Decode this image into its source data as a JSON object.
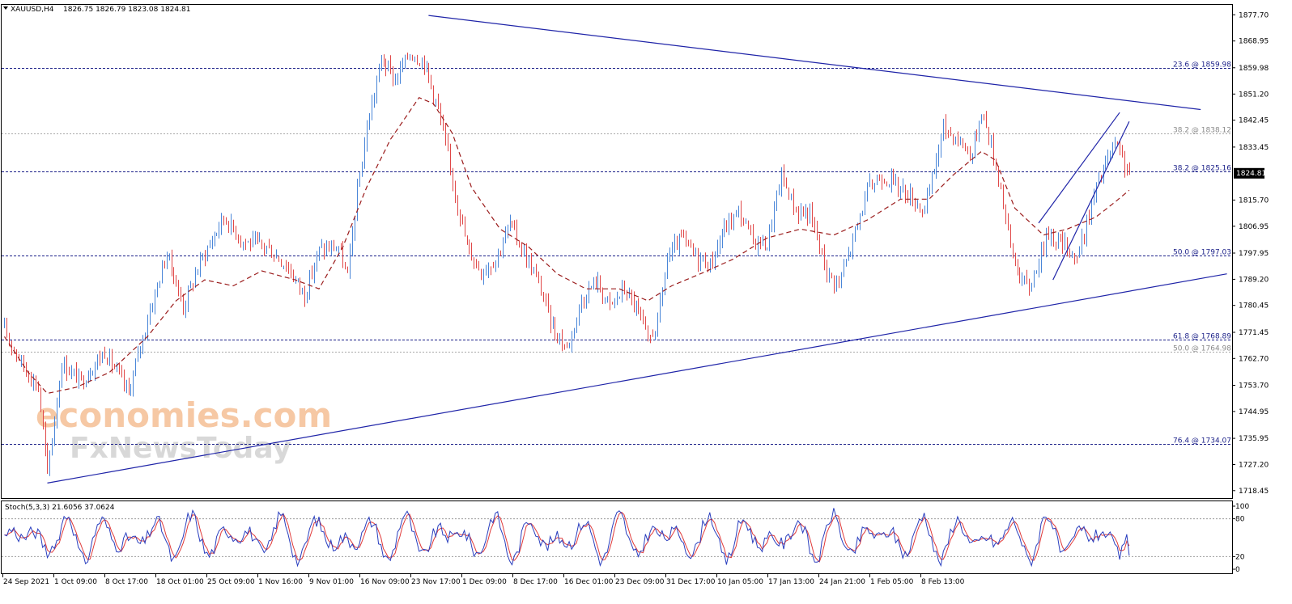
{
  "header": {
    "symbol_text": "XAUUSD,H4",
    "ohlc_text": "1826.75 1826.79 1823.08 1824.81"
  },
  "watermark": {
    "line1": "economies.com",
    "line2": "FxNewsToday"
  },
  "colors": {
    "bull": "#4a86d8",
    "bear": "#e04848",
    "ma": "#9b1c1c",
    "trend": "#1f24a8",
    "fib_major": "#1a1f88",
    "fib_minor": "#a8a8a8",
    "stoch_main": "#2a3fbf",
    "stoch_signal": "#e03a3a",
    "watermark_orange": "#f6c8a4",
    "watermark_grey": "#d8d8d8"
  },
  "chart_data": {
    "type": "candlestick",
    "symbol": "XAUUSD",
    "timeframe": "H4",
    "last_price": "1824.81",
    "price_ticks": [
      "1877.70",
      "1868.95",
      "1859.98",
      "1851.20",
      "1842.45",
      "1833.45",
      "1815.70",
      "1806.95",
      "1797.95",
      "1789.20",
      "1780.45",
      "1771.45",
      "1762.70",
      "1753.70",
      "1744.95",
      "1735.95",
      "1727.20",
      "1718.45"
    ],
    "y_range": [
      1716.5,
      1880.5
    ],
    "x_labels": [
      "24 Sep 2021",
      "1 Oct 09:00",
      "8 Oct 17:00",
      "18 Oct 01:00",
      "25 Oct 09:00",
      "1 Nov 16:00",
      "9 Nov 01:00",
      "16 Nov 09:00",
      "23 Nov 17:00",
      "1 Dec 09:00",
      "8 Dec 17:00",
      "16 Dec 01:00",
      "23 Dec 09:00",
      "31 Dec 17:00",
      "10 Jan 05:00",
      "17 Jan 13:00",
      "24 Jan 21:00",
      "1 Feb 05:00",
      "8 Feb 13:00"
    ],
    "anchors": [
      {
        "bar": 0,
        "price": 1772
      },
      {
        "bar": 8,
        "price": 1760
      },
      {
        "bar": 14,
        "price": 1753
      },
      {
        "bar": 18,
        "price": 1724
      },
      {
        "bar": 24,
        "price": 1761
      },
      {
        "bar": 32,
        "price": 1755
      },
      {
        "bar": 42,
        "price": 1765
      },
      {
        "bar": 52,
        "price": 1751
      },
      {
        "bar": 60,
        "price": 1776
      },
      {
        "bar": 68,
        "price": 1798
      },
      {
        "bar": 75,
        "price": 1780
      },
      {
        "bar": 82,
        "price": 1795
      },
      {
        "bar": 92,
        "price": 1810
      },
      {
        "bar": 100,
        "price": 1802
      },
      {
        "bar": 110,
        "price": 1800
      },
      {
        "bar": 118,
        "price": 1794
      },
      {
        "bar": 126,
        "price": 1784
      },
      {
        "bar": 132,
        "price": 1799
      },
      {
        "bar": 140,
        "price": 1800
      },
      {
        "bar": 144,
        "price": 1790
      },
      {
        "bar": 148,
        "price": 1818
      },
      {
        "bar": 152,
        "price": 1840
      },
      {
        "bar": 158,
        "price": 1863
      },
      {
        "bar": 164,
        "price": 1856
      },
      {
        "bar": 170,
        "price": 1865
      },
      {
        "bar": 176,
        "price": 1862
      },
      {
        "bar": 182,
        "price": 1846
      },
      {
        "bar": 188,
        "price": 1822
      },
      {
        "bar": 194,
        "price": 1800
      },
      {
        "bar": 200,
        "price": 1792
      },
      {
        "bar": 206,
        "price": 1796
      },
      {
        "bar": 212,
        "price": 1808
      },
      {
        "bar": 218,
        "price": 1798
      },
      {
        "bar": 224,
        "price": 1788
      },
      {
        "bar": 230,
        "price": 1773
      },
      {
        "bar": 236,
        "price": 1766
      },
      {
        "bar": 242,
        "price": 1782
      },
      {
        "bar": 248,
        "price": 1789
      },
      {
        "bar": 254,
        "price": 1780
      },
      {
        "bar": 260,
        "price": 1786
      },
      {
        "bar": 266,
        "price": 1778
      },
      {
        "bar": 270,
        "price": 1768
      },
      {
        "bar": 274,
        "price": 1775
      },
      {
        "bar": 278,
        "price": 1796
      },
      {
        "bar": 284,
        "price": 1803
      },
      {
        "bar": 290,
        "price": 1797
      },
      {
        "bar": 296,
        "price": 1794
      },
      {
        "bar": 302,
        "price": 1806
      },
      {
        "bar": 308,
        "price": 1812
      },
      {
        "bar": 314,
        "price": 1802
      },
      {
        "bar": 320,
        "price": 1801
      },
      {
        "bar": 326,
        "price": 1824
      },
      {
        "bar": 332,
        "price": 1812
      },
      {
        "bar": 338,
        "price": 1811
      },
      {
        "bar": 342,
        "price": 1800
      },
      {
        "bar": 346,
        "price": 1790
      },
      {
        "bar": 350,
        "price": 1788
      },
      {
        "bar": 356,
        "price": 1802
      },
      {
        "bar": 362,
        "price": 1819
      },
      {
        "bar": 368,
        "price": 1824
      },
      {
        "bar": 374,
        "price": 1821
      },
      {
        "bar": 380,
        "price": 1817
      },
      {
        "bar": 386,
        "price": 1812
      },
      {
        "bar": 390,
        "price": 1826
      },
      {
        "bar": 394,
        "price": 1840
      },
      {
        "bar": 400,
        "price": 1836
      },
      {
        "bar": 406,
        "price": 1831
      },
      {
        "bar": 410,
        "price": 1846
      },
      {
        "bar": 414,
        "price": 1834
      },
      {
        "bar": 418,
        "price": 1820
      },
      {
        "bar": 422,
        "price": 1800
      },
      {
        "bar": 426,
        "price": 1790
      },
      {
        "bar": 430,
        "price": 1786
      },
      {
        "bar": 434,
        "price": 1796
      },
      {
        "bar": 438,
        "price": 1805
      },
      {
        "bar": 442,
        "price": 1802
      },
      {
        "bar": 446,
        "price": 1800
      },
      {
        "bar": 450,
        "price": 1796
      },
      {
        "bar": 454,
        "price": 1808
      },
      {
        "bar": 458,
        "price": 1820
      },
      {
        "bar": 462,
        "price": 1828
      },
      {
        "bar": 466,
        "price": 1834
      },
      {
        "bar": 469,
        "price": 1829
      },
      {
        "bar": 472,
        "price": 1824.81
      }
    ],
    "moving_average": {
      "style": "dashed",
      "anchors": [
        {
          "bar": 0,
          "price": 1770
        },
        {
          "bar": 10,
          "price": 1758
        },
        {
          "bar": 18,
          "price": 1751
        },
        {
          "bar": 30,
          "price": 1753
        },
        {
          "bar": 44,
          "price": 1758
        },
        {
          "bar": 60,
          "price": 1770
        },
        {
          "bar": 72,
          "price": 1782
        },
        {
          "bar": 84,
          "price": 1789
        },
        {
          "bar": 96,
          "price": 1787
        },
        {
          "bar": 108,
          "price": 1792
        },
        {
          "bar": 122,
          "price": 1789
        },
        {
          "bar": 132,
          "price": 1786
        },
        {
          "bar": 142,
          "price": 1800
        },
        {
          "bar": 152,
          "price": 1820
        },
        {
          "bar": 162,
          "price": 1836
        },
        {
          "bar": 174,
          "price": 1850
        },
        {
          "bar": 180,
          "price": 1848
        },
        {
          "bar": 188,
          "price": 1838
        },
        {
          "bar": 196,
          "price": 1820
        },
        {
          "bar": 208,
          "price": 1806
        },
        {
          "bar": 220,
          "price": 1800
        },
        {
          "bar": 232,
          "price": 1791
        },
        {
          "bar": 244,
          "price": 1786
        },
        {
          "bar": 258,
          "price": 1786
        },
        {
          "bar": 270,
          "price": 1782
        },
        {
          "bar": 280,
          "price": 1787
        },
        {
          "bar": 292,
          "price": 1791
        },
        {
          "bar": 306,
          "price": 1796
        },
        {
          "bar": 320,
          "price": 1803
        },
        {
          "bar": 334,
          "price": 1806
        },
        {
          "bar": 348,
          "price": 1804
        },
        {
          "bar": 362,
          "price": 1809
        },
        {
          "bar": 376,
          "price": 1816
        },
        {
          "bar": 388,
          "price": 1816
        },
        {
          "bar": 398,
          "price": 1824
        },
        {
          "bar": 410,
          "price": 1832
        },
        {
          "bar": 416,
          "price": 1829
        },
        {
          "bar": 424,
          "price": 1813
        },
        {
          "bar": 436,
          "price": 1804
        },
        {
          "bar": 446,
          "price": 1806
        },
        {
          "bar": 458,
          "price": 1810
        },
        {
          "bar": 466,
          "price": 1815
        },
        {
          "bar": 472,
          "price": 1819
        }
      ]
    },
    "trendlines": [
      {
        "name": "upper",
        "from": {
          "bar": 178,
          "price": 1877.5
        },
        "to": {
          "bar": 502,
          "price": 1846
        }
      },
      {
        "name": "lower",
        "from": {
          "bar": 18,
          "price": 1721
        },
        "to": {
          "bar": 513,
          "price": 1791
        }
      },
      {
        "name": "wedge-upper",
        "from": {
          "bar": 434,
          "price": 1808
        },
        "to": {
          "bar": 468,
          "price": 1845
        }
      },
      {
        "name": "wedge-lower",
        "from": {
          "bar": 440,
          "price": 1789
        },
        "to": {
          "bar": 472,
          "price": 1842
        }
      }
    ],
    "fib_levels": [
      {
        "label": "23.6 @ 1859.98",
        "price": 1859.98,
        "style": "major"
      },
      {
        "label": "38.2 @ 1838.12",
        "price": 1838.12,
        "style": "minor"
      },
      {
        "label": "38.2 @ 1825.16",
        "price": 1825.16,
        "style": "major"
      },
      {
        "label": "50.0 @ 1797.03",
        "price": 1797.03,
        "style": "major"
      },
      {
        "label": "61.8 @ 1768.89",
        "price": 1768.89,
        "style": "major"
      },
      {
        "label": "50.0 @ 1764.98",
        "price": 1764.98,
        "style": "minor"
      },
      {
        "label": "76.4 @ 1734.07",
        "price": 1734.07,
        "style": "major"
      }
    ]
  },
  "stochastic": {
    "title": "Stoch(5,3,3) 21.6056 37.0624",
    "ticks": [
      "100",
      "80",
      "20",
      "0"
    ],
    "levels": [
      80,
      20
    ],
    "value": 21.6056,
    "signal": 37.0624
  }
}
